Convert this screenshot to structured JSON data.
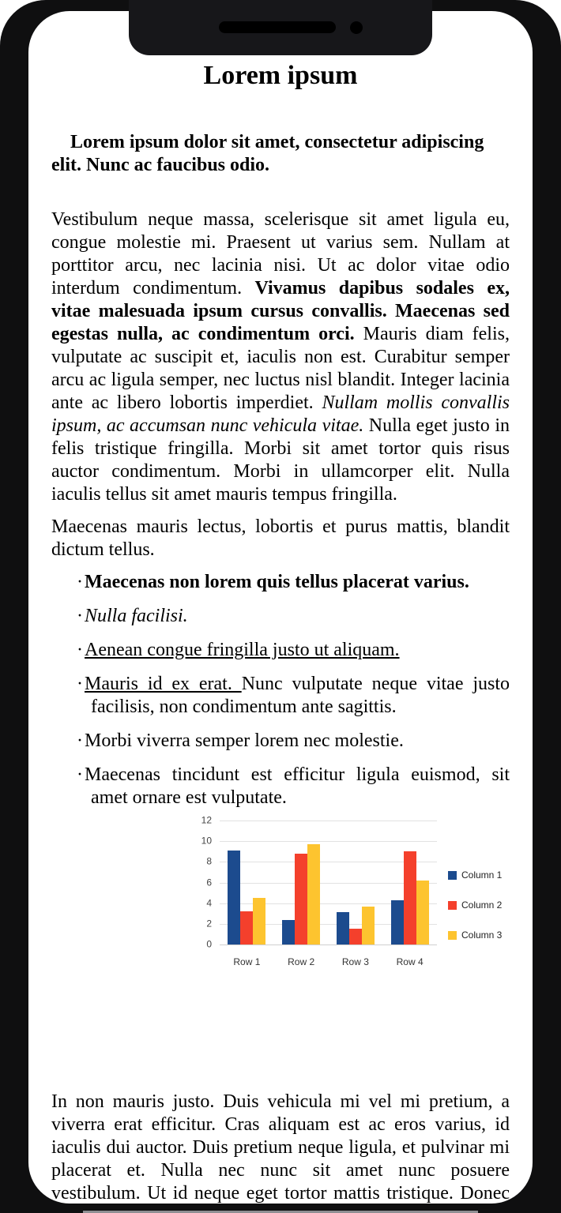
{
  "document": {
    "title": "Lorem ipsum",
    "intro": [
      {
        "text": "Lorem ipsum dolor sit amet, consectetur adipiscing elit. Nunc ac faucibus odio.",
        "bold": true
      }
    ],
    "paragraph1": [
      {
        "text": "Vestibulum neque massa, scelerisque sit amet ligula eu, congue molestie mi. Praesent ut varius sem. Nullam at porttitor arcu, nec lacinia nisi. Ut ac dolor vitae odio interdum condimentum. "
      },
      {
        "text": "Vivamus dapibus sodales ex, vitae malesuada ipsum cursus convallis. Maecenas sed egestas nulla, ac condimentum orci.",
        "bold": true
      },
      {
        "text": " Mauris diam felis, vulputate ac suscipit et, iaculis non est. Curabitur semper arcu ac ligula semper, nec luctus nisl blandit. Integer lacinia ante ac libero lobortis imperdiet. "
      },
      {
        "text": "Nullam mollis convallis ipsum, ac accumsan nunc vehicula vitae.",
        "italic": true
      },
      {
        "text": " Nulla eget justo in felis tristique fringilla. Morbi sit amet tortor quis risus auctor condimentum. Morbi in ullamcorper elit. Nulla iaculis tellus sit amet mauris tempus fringilla."
      }
    ],
    "paragraph2": [
      {
        "text": "Maecenas mauris lectus, lobortis et purus mattis, blandit dictum tellus."
      }
    ],
    "bullets": [
      [
        {
          "text": "Maecenas non lorem quis tellus placerat varius.",
          "bold": true
        }
      ],
      [
        {
          "text": "Nulla facilisi.",
          "italic": true
        }
      ],
      [
        {
          "text": "Aenean congue fringilla justo ut aliquam.",
          "underline": true
        }
      ],
      [
        {
          "text": "Mauris id ex erat. ",
          "underline": true
        },
        {
          "text": "Nunc vulputate neque vitae justo facilisis, non condimentum ante sagittis."
        }
      ],
      [
        {
          "text": "Morbi viverra semper lorem nec molestie."
        }
      ],
      [
        {
          "text": "Maecenas tincidunt est efficitur ligula euismod, sit amet ornare est vulputate."
        }
      ]
    ],
    "closing": [
      {
        "text": "In non mauris justo. Duis vehicula mi vel mi pretium, a viverra erat efficitur. Cras aliquam est ac eros varius, id iaculis dui auctor. Duis pretium neque ligula, et pulvinar mi placerat et. Nulla nec nunc sit amet nunc posuere vestibulum. Ut id neque eget tortor mattis tristique. Donec ante est, blandit sit amet tristique vel, lacinia pulvinar arcu."
      }
    ],
    "bullet_glyph": "·"
  },
  "chart_data": {
    "type": "bar",
    "categories": [
      "Row 1",
      "Row 2",
      "Row 3",
      "Row 4"
    ],
    "series": [
      {
        "name": "Column 1",
        "color": "#1C4B8E",
        "values": [
          9.1,
          2.4,
          3.1,
          4.3
        ]
      },
      {
        "name": "Column 2",
        "color": "#F4402C",
        "values": [
          3.2,
          8.8,
          1.5,
          9.0
        ]
      },
      {
        "name": "Column 3",
        "color": "#FDC42F",
        "values": [
          4.5,
          9.7,
          3.7,
          6.2
        ]
      }
    ],
    "title": "",
    "xlabel": "",
    "ylabel": "",
    "ylim": [
      0,
      12
    ],
    "yticks": [
      0,
      2,
      4,
      6,
      8,
      10,
      12
    ],
    "grid": true,
    "legend_position": "right"
  }
}
